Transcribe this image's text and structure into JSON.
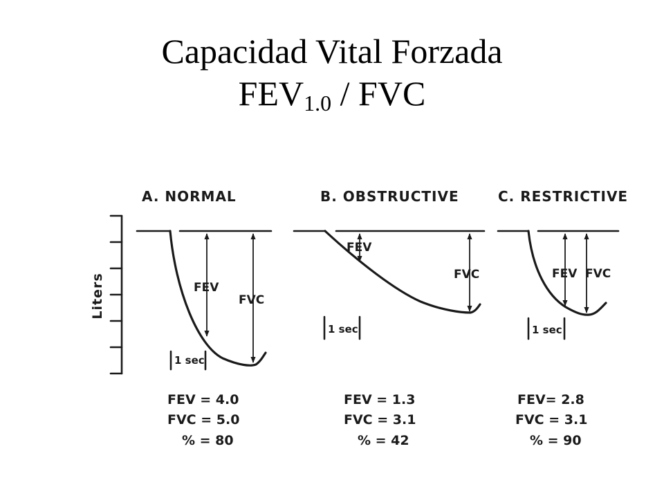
{
  "title": {
    "line1": "Capacidad Vital Forzada",
    "line2_main": "FEV",
    "line2_sub": "1.0",
    "line2_rest": " / FVC"
  },
  "axis": {
    "label": "Liters"
  },
  "panels": [
    {
      "title": "A. NORMAL",
      "fev_label": "FEV",
      "fvc_label": "FVC",
      "sec_label": "1 sec",
      "fev_line": "FEV = 4.0",
      "fvc_line": "FVC = 5.0",
      "pct_line": "% = 80",
      "fev": 4.0,
      "fvc": 5.0,
      "pct": 80
    },
    {
      "title": "B. OBSTRUCTIVE",
      "fev_label": "FEV",
      "fvc_label": "FVC",
      "sec_label": "1 sec",
      "fev_line": "FEV = 1.3",
      "fvc_line": "FVC = 3.1",
      "pct_line": "% = 42",
      "fev": 1.3,
      "fvc": 3.1,
      "pct": 42
    },
    {
      "title": "C. RESTRICTIVE",
      "fev_label": "FEV",
      "fvc_label": "FVC",
      "sec_label": "1 sec",
      "fev_line": "FEV= 2.8",
      "fvc_line": "FVC = 3.1",
      "pct_line": "% = 90",
      "fev": 2.8,
      "fvc": 3.1,
      "pct": 90
    }
  ],
  "colors": {
    "ink": "#1a1a1a",
    "title": "#000000",
    "background": "#ffffff"
  }
}
